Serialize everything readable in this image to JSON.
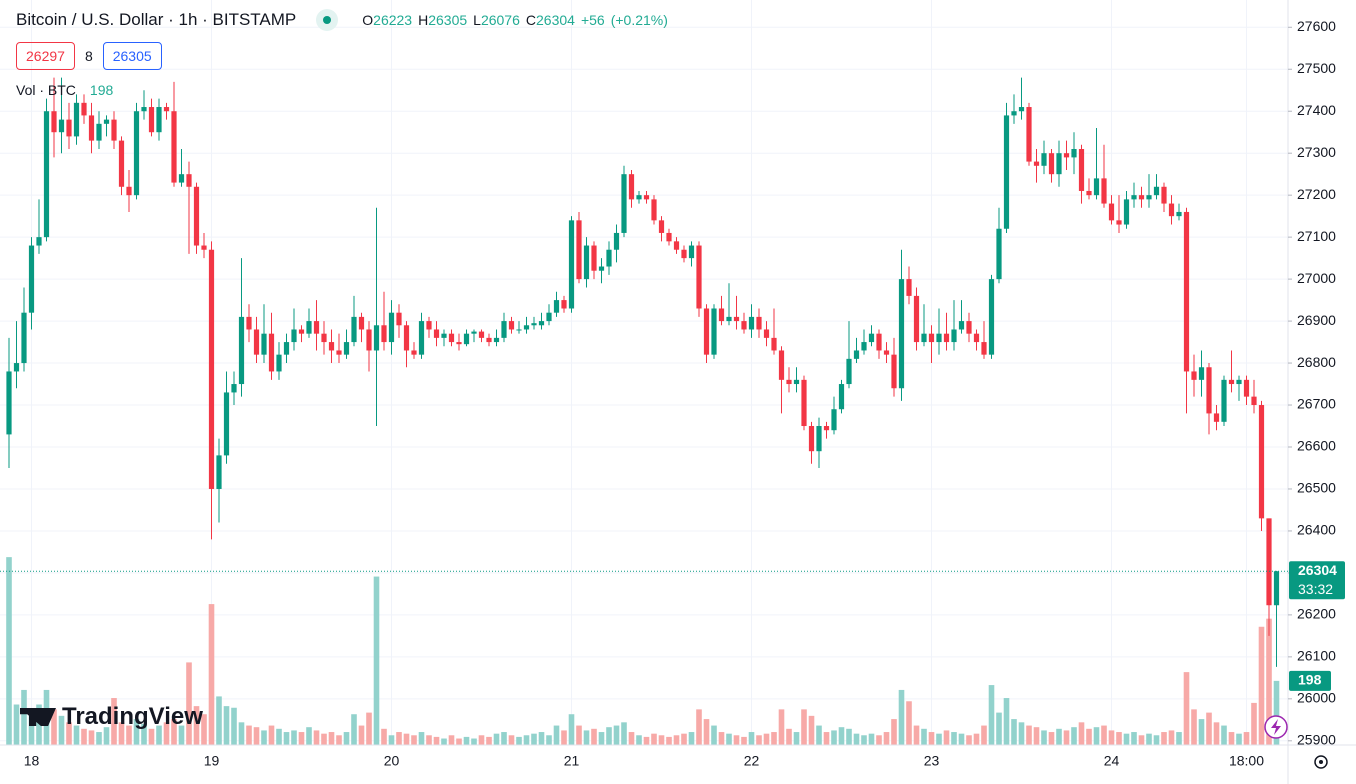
{
  "chart_data": {
    "type": "candlestick",
    "title": "Bitcoin / U.S. Dollar · 1h · BITSTAMP",
    "ohlc_letters": [
      "O",
      "H",
      "L",
      "C"
    ],
    "change": {
      "value": 56,
      "label": "+56"
    },
    "change_pct": {
      "value": 0.21,
      "label": "(+0.21%)"
    },
    "bid": 26297,
    "spread": 8,
    "ask": 26305,
    "volume_title": "Vol · BTC",
    "countdown": "33:32",
    "watermark": "TradingView",
    "up_color": "#089981",
    "down_color": "#f23645",
    "up_volume_color": "#92d2cc",
    "down_volume_color": "#f7a9a7",
    "ylim": [
      25890,
      27665
    ],
    "yticks": [
      25900,
      26000,
      26100,
      26200,
      26300,
      26400,
      26500,
      26600,
      26700,
      26800,
      26900,
      27000,
      27100,
      27200,
      27300,
      27400,
      27500,
      27600
    ],
    "vlim": [
      0,
      2300
    ],
    "grid": true,
    "x": [
      null,
      null,
      null,
      "18",
      null,
      null,
      null,
      null,
      null,
      null,
      null,
      null,
      null,
      null,
      null,
      null,
      null,
      null,
      null,
      null,
      null,
      null,
      null,
      null,
      null,
      null,
      null,
      "19",
      null,
      null,
      null,
      null,
      null,
      null,
      null,
      null,
      null,
      null,
      null,
      null,
      null,
      null,
      null,
      null,
      null,
      null,
      null,
      null,
      null,
      null,
      null,
      "20",
      null,
      null,
      null,
      null,
      null,
      null,
      null,
      null,
      null,
      null,
      null,
      null,
      null,
      null,
      null,
      null,
      null,
      null,
      null,
      null,
      null,
      null,
      null,
      "21",
      null,
      null,
      null,
      null,
      null,
      null,
      null,
      null,
      null,
      null,
      null,
      null,
      null,
      null,
      null,
      null,
      null,
      null,
      null,
      null,
      null,
      null,
      null,
      "22",
      null,
      null,
      null,
      null,
      null,
      null,
      null,
      null,
      null,
      null,
      null,
      null,
      null,
      null,
      null,
      null,
      null,
      null,
      null,
      null,
      null,
      null,
      null,
      "23",
      null,
      null,
      null,
      null,
      null,
      null,
      null,
      null,
      null,
      null,
      null,
      null,
      null,
      null,
      null,
      null,
      null,
      null,
      null,
      null,
      null,
      null,
      null,
      "24",
      null,
      null,
      null,
      null,
      null,
      null,
      null,
      null,
      null,
      null,
      null,
      null,
      null,
      null,
      null,
      null,
      null,
      "18:00",
      null,
      null,
      null,
      null
    ],
    "open": [
      26630,
      26780,
      26800,
      26920,
      27080,
      27100,
      27400,
      27350,
      27380,
      27340,
      27420,
      27390,
      27330,
      27370,
      27380,
      27330,
      27220,
      27200,
      27400,
      27410,
      27350,
      27410,
      27400,
      27230,
      27250,
      27220,
      27080,
      27070,
      26500,
      26580,
      26730,
      26750,
      26910,
      26880,
      26820,
      26870,
      26780,
      26820,
      26850,
      26880,
      26870,
      26900,
      26870,
      26850,
      26830,
      26820,
      26850,
      26910,
      26880,
      26830,
      26890,
      26850,
      26920,
      26890,
      26830,
      26820,
      26900,
      26880,
      26860,
      26870,
      26850,
      26845,
      26870,
      26875,
      26860,
      26850,
      26860,
      26900,
      26880,
      26880,
      26890,
      26890,
      26900,
      26920,
      26950,
      26930,
      27140,
      27000,
      27080,
      27020,
      27030,
      27070,
      27110,
      27250,
      27190,
      27200,
      27190,
      27140,
      27110,
      27090,
      27070,
      27050,
      27080,
      26930,
      26820,
      26930,
      26900,
      26910,
      26900,
      26880,
      26910,
      26880,
      26860,
      26830,
      26760,
      26750,
      26760,
      26650,
      26590,
      26650,
      26640,
      26690,
      26750,
      26810,
      26830,
      26850,
      26870,
      26830,
      26820,
      26740,
      27000,
      26960,
      26850,
      26870,
      26850,
      26870,
      26850,
      26880,
      26900,
      26870,
      26850,
      26820,
      27000,
      27120,
      27390,
      27400,
      27410,
      27280,
      27270,
      27300,
      27250,
      27300,
      27290,
      27310,
      27210,
      27200,
      27240,
      27180,
      27140,
      27130,
      27190,
      27200,
      27190,
      27200,
      27220,
      27180,
      27150,
      27160,
      26780,
      26760,
      26790,
      26680,
      26660,
      26760,
      26750,
      26760,
      26720,
      26700,
      26430,
      26223
    ],
    "high": [
      26860,
      26900,
      26980,
      27100,
      27190,
      27430,
      27480,
      27480,
      27420,
      27440,
      27440,
      27420,
      27400,
      27390,
      27400,
      27340,
      27260,
      27420,
      27450,
      27430,
      27430,
      27420,
      27470,
      27310,
      27280,
      27230,
      27110,
      27090,
      26620,
      26780,
      26780,
      27050,
      26940,
      26910,
      26940,
      26920,
      26850,
      26870,
      26930,
      26890,
      26930,
      26950,
      26900,
      26880,
      26870,
      26880,
      26960,
      26920,
      26900,
      27170,
      26970,
      26950,
      26940,
      26900,
      26850,
      26920,
      26910,
      26900,
      26880,
      26880,
      26870,
      26880,
      26880,
      26880,
      26870,
      26880,
      26920,
      26910,
      26900,
      26910,
      26910,
      26920,
      26940,
      26970,
      26960,
      27150,
      27160,
      27100,
      27090,
      27050,
      27090,
      27130,
      27270,
      27260,
      27210,
      27210,
      27200,
      27150,
      27120,
      27100,
      27080,
      27090,
      27090,
      26940,
      26940,
      26960,
      26990,
      26960,
      26920,
      26940,
      26930,
      26900,
      26930,
      26840,
      26790,
      26790,
      26770,
      26660,
      26670,
      26660,
      26720,
      26760,
      26900,
      26860,
      26880,
      26890,
      26880,
      26850,
      26860,
      27070,
      27030,
      26980,
      26940,
      26890,
      26930,
      26920,
      26950,
      26950,
      26920,
      26880,
      26900,
      27010,
      27170,
      27420,
      27440,
      27480,
      27420,
      27310,
      27330,
      27310,
      27330,
      27330,
      27350,
      27320,
      27240,
      27360,
      27320,
      27200,
      27200,
      27210,
      27230,
      27220,
      27250,
      27250,
      27230,
      27200,
      27180,
      27170,
      26820,
      26830,
      26800,
      26700,
      26770,
      26830,
      26770,
      26770,
      26760,
      26710,
      26430,
      26305
    ],
    "low": [
      26550,
      26740,
      26780,
      26880,
      27060,
      27090,
      27290,
      27300,
      27310,
      27320,
      27370,
      27300,
      27310,
      27340,
      27310,
      27200,
      27160,
      27190,
      27380,
      27340,
      27330,
      27380,
      27220,
      27220,
      27060,
      27060,
      27050,
      26380,
      26420,
      26560,
      26700,
      26720,
      26850,
      26800,
      26800,
      26760,
      26760,
      26800,
      26830,
      26850,
      26860,
      26830,
      26820,
      26800,
      26800,
      26810,
      26840,
      26850,
      26780,
      26650,
      26830,
      26820,
      26860,
      26790,
      26810,
      26810,
      26860,
      26840,
      26840,
      26840,
      26830,
      26840,
      26850,
      26850,
      26840,
      26840,
      26850,
      26870,
      26870,
      26870,
      26880,
      26880,
      26890,
      26910,
      26920,
      26920,
      26990,
      26980,
      27000,
      26990,
      27010,
      27040,
      27100,
      27170,
      27180,
      27180,
      27130,
      27090,
      27080,
      27060,
      27040,
      27030,
      26910,
      26800,
      26810,
      26890,
      26890,
      26880,
      26870,
      26860,
      26860,
      26840,
      26820,
      26680,
      26730,
      26730,
      26640,
      26560,
      26550,
      26620,
      26630,
      26680,
      26740,
      26800,
      26820,
      26840,
      26810,
      26800,
      26720,
      26710,
      26940,
      26830,
      26840,
      26800,
      26820,
      26830,
      26830,
      26870,
      26850,
      26830,
      26810,
      26810,
      26990,
      27110,
      27370,
      27380,
      27270,
      27230,
      27250,
      27230,
      27220,
      27260,
      27250,
      27180,
      27190,
      27190,
      27170,
      27130,
      27110,
      27120,
      27170,
      27170,
      27170,
      27190,
      27160,
      27130,
      27140,
      26680,
      26720,
      26720,
      26630,
      26640,
      26650,
      26730,
      26710,
      26700,
      26680,
      26400,
      26150,
      26076
    ],
    "close": [
      26780,
      26800,
      26920,
      27080,
      27100,
      27400,
      27350,
      27380,
      27340,
      27420,
      27390,
      27330,
      27370,
      27380,
      27330,
      27220,
      27200,
      27400,
      27410,
      27350,
      27410,
      27400,
      27230,
      27250,
      27220,
      27080,
      27070,
      26500,
      26580,
      26730,
      26750,
      26910,
      26880,
      26820,
      26870,
      26780,
      26820,
      26850,
      26880,
      26870,
      26900,
      26870,
      26850,
      26830,
      26820,
      26850,
      26910,
      26880,
      26830,
      26890,
      26850,
      26920,
      26890,
      26830,
      26820,
      26900,
      26880,
      26860,
      26870,
      26850,
      26845,
      26870,
      26875,
      26860,
      26850,
      26860,
      26900,
      26880,
      26880,
      26890,
      26895,
      26900,
      26920,
      26950,
      26930,
      27140,
      27000,
      27080,
      27020,
      27030,
      27070,
      27110,
      27250,
      27190,
      27200,
      27190,
      27140,
      27110,
      27090,
      27070,
      27050,
      27080,
      26930,
      26820,
      26930,
      26900,
      26910,
      26900,
      26880,
      26910,
      26880,
      26860,
      26830,
      26760,
      26750,
      26760,
      26650,
      26590,
      26650,
      26640,
      26690,
      26750,
      26810,
      26830,
      26850,
      26870,
      26830,
      26820,
      26740,
      27000,
      26960,
      26850,
      26870,
      26850,
      26870,
      26850,
      26880,
      26900,
      26870,
      26850,
      26820,
      27000,
      27120,
      27390,
      27400,
      27410,
      27280,
      27270,
      27300,
      27250,
      27300,
      27290,
      27310,
      27210,
      27200,
      27240,
      27180,
      27140,
      27130,
      27190,
      27200,
      27190,
      27200,
      27220,
      27180,
      27150,
      27160,
      26780,
      26760,
      26790,
      26680,
      26660,
      26760,
      26750,
      26760,
      26720,
      26700,
      26430,
      26223,
      26304
    ],
    "volume": [
      580,
      125,
      170,
      95,
      125,
      170,
      110,
      90,
      70,
      60,
      50,
      45,
      40,
      55,
      145,
      70,
      60,
      80,
      65,
      50,
      60,
      70,
      80,
      60,
      255,
      120,
      95,
      435,
      150,
      120,
      115,
      70,
      60,
      55,
      45,
      60,
      50,
      40,
      45,
      40,
      55,
      45,
      35,
      40,
      30,
      40,
      95,
      60,
      100,
      520,
      50,
      30,
      40,
      35,
      30,
      40,
      30,
      25,
      20,
      30,
      20,
      25,
      20,
      30,
      25,
      35,
      40,
      30,
      25,
      30,
      35,
      40,
      30,
      60,
      45,
      95,
      60,
      45,
      50,
      40,
      55,
      60,
      70,
      40,
      30,
      25,
      35,
      30,
      25,
      30,
      35,
      40,
      110,
      80,
      60,
      40,
      35,
      30,
      25,
      40,
      30,
      35,
      40,
      110,
      50,
      40,
      110,
      90,
      60,
      40,
      45,
      55,
      50,
      35,
      30,
      35,
      30,
      40,
      80,
      170,
      135,
      60,
      50,
      40,
      35,
      45,
      40,
      35,
      30,
      35,
      60,
      185,
      100,
      145,
      80,
      70,
      60,
      55,
      45,
      40,
      50,
      45,
      55,
      70,
      50,
      55,
      60,
      45,
      40,
      35,
      40,
      30,
      35,
      30,
      40,
      45,
      40,
      225,
      110,
      80,
      100,
      70,
      60,
      40,
      35,
      40,
      130,
      365,
      390,
      198
    ]
  }
}
